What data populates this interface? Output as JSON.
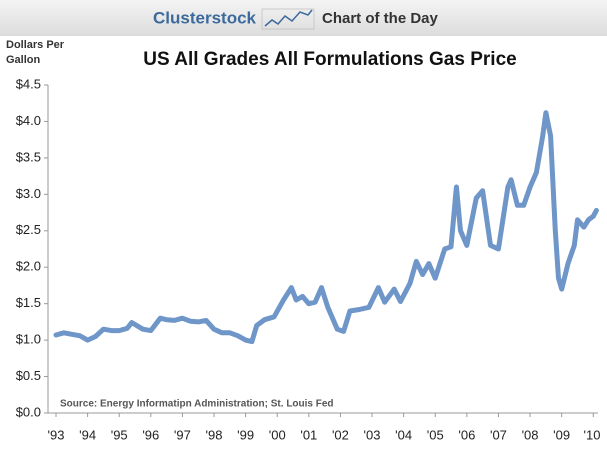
{
  "header": {
    "brand": "Clusterstock",
    "tagline": "Chart of the Day"
  },
  "chart_data": {
    "type": "line",
    "title": "US All Grades All Formulations Gas Price",
    "ylabel": "Dollars Per Gallon",
    "annotation": "Source: Energy Informatipn Administration; St. Louis Fed",
    "color": "#6e96c8",
    "x": [
      1993.0,
      1993.25,
      1993.5,
      1993.75,
      1994.0,
      1994.25,
      1994.5,
      1994.75,
      1995.0,
      1995.25,
      1995.4,
      1995.75,
      1996.0,
      1996.3,
      1996.5,
      1996.75,
      1997.0,
      1997.25,
      1997.5,
      1997.75,
      1998.0,
      1998.25,
      1998.5,
      1998.75,
      1999.0,
      1999.2,
      1999.35,
      1999.6,
      1999.9,
      2000.2,
      2000.45,
      2000.6,
      2000.8,
      2001.0,
      2001.2,
      2001.4,
      2001.6,
      2001.9,
      2002.1,
      2002.3,
      2002.6,
      2002.9,
      2003.2,
      2003.4,
      2003.7,
      2003.9,
      2004.2,
      2004.4,
      2004.6,
      2004.8,
      2005.0,
      2005.3,
      2005.5,
      2005.67,
      2005.8,
      2006.0,
      2006.3,
      2006.5,
      2006.75,
      2007.0,
      2007.3,
      2007.4,
      2007.6,
      2007.8,
      2008.0,
      2008.2,
      2008.4,
      2008.5,
      2008.65,
      2008.8,
      2008.9,
      2009.0,
      2009.2,
      2009.4,
      2009.5,
      2009.7,
      2009.85,
      2010.0,
      2010.1
    ],
    "values": [
      1.07,
      1.1,
      1.08,
      1.06,
      1.0,
      1.05,
      1.15,
      1.13,
      1.13,
      1.16,
      1.24,
      1.15,
      1.13,
      1.3,
      1.28,
      1.27,
      1.3,
      1.26,
      1.25,
      1.27,
      1.15,
      1.1,
      1.1,
      1.06,
      1.0,
      0.98,
      1.2,
      1.28,
      1.32,
      1.55,
      1.72,
      1.55,
      1.6,
      1.5,
      1.52,
      1.72,
      1.45,
      1.15,
      1.12,
      1.4,
      1.42,
      1.45,
      1.72,
      1.52,
      1.7,
      1.53,
      1.78,
      2.08,
      1.9,
      2.05,
      1.85,
      2.25,
      2.28,
      3.1,
      2.5,
      2.3,
      2.95,
      3.05,
      2.3,
      2.25,
      3.1,
      3.2,
      2.85,
      2.85,
      3.1,
      3.3,
      3.8,
      4.12,
      3.8,
      2.5,
      1.85,
      1.7,
      2.05,
      2.3,
      2.65,
      2.55,
      2.65,
      2.7,
      2.78
    ],
    "xlim": [
      1993,
      2010.15
    ],
    "xticks": [
      {
        "value": 1993,
        "label": "'93"
      },
      {
        "value": 1994,
        "label": "'94"
      },
      {
        "value": 1995,
        "label": "'95"
      },
      {
        "value": 1996,
        "label": "'96"
      },
      {
        "value": 1997,
        "label": "'97"
      },
      {
        "value": 1998,
        "label": "'98"
      },
      {
        "value": 1999,
        "label": "'99"
      },
      {
        "value": 2000,
        "label": "'00"
      },
      {
        "value": 2001,
        "label": "'01"
      },
      {
        "value": 2002,
        "label": "'02"
      },
      {
        "value": 2003,
        "label": "'03"
      },
      {
        "value": 2004,
        "label": "'04"
      },
      {
        "value": 2005,
        "label": "'05"
      },
      {
        "value": 2006,
        "label": "'06"
      },
      {
        "value": 2007,
        "label": "'07"
      },
      {
        "value": 2008,
        "label": "'08"
      },
      {
        "value": 2009,
        "label": "'09"
      },
      {
        "value": 2010,
        "label": "'10"
      }
    ],
    "ylim": [
      0,
      4.5
    ],
    "yticks": [
      {
        "value": 0,
        "label": "$0.0"
      },
      {
        "value": 0.5,
        "label": "$0.5"
      },
      {
        "value": 1,
        "label": "$1.0"
      },
      {
        "value": 1.5,
        "label": "$1.5"
      },
      {
        "value": 2,
        "label": "$2.0"
      },
      {
        "value": 2.5,
        "label": "$2.5"
      },
      {
        "value": 3,
        "label": "$3.0"
      },
      {
        "value": 3.5,
        "label": "$3.5"
      },
      {
        "value": 4,
        "label": "$4.0"
      },
      {
        "value": 4.5,
        "label": "$4.5"
      }
    ],
    "grid": false
  }
}
